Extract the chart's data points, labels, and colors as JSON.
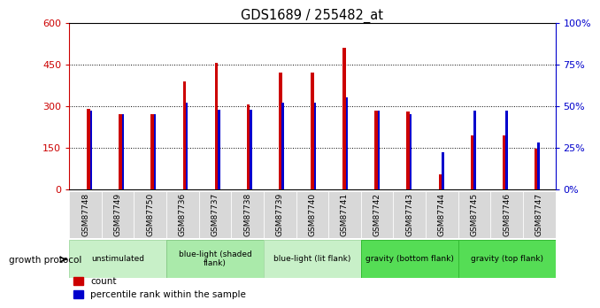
{
  "title": "GDS1689 / 255482_at",
  "samples": [
    "GSM87748",
    "GSM87749",
    "GSM87750",
    "GSM87736",
    "GSM87737",
    "GSM87738",
    "GSM87739",
    "GSM87740",
    "GSM87741",
    "GSM87742",
    "GSM87743",
    "GSM87744",
    "GSM87745",
    "GSM87746",
    "GSM87747"
  ],
  "count_values": [
    290,
    270,
    270,
    390,
    455,
    305,
    420,
    420,
    510,
    285,
    280,
    55,
    195,
    195,
    145
  ],
  "percentile_values": [
    47,
    45,
    45,
    52,
    48,
    48,
    52,
    52,
    55,
    47,
    45,
    22,
    47,
    47,
    28
  ],
  "groups": [
    {
      "label": "unstimulated",
      "n": 3,
      "color": "#c8f0c8",
      "border": "#aaddaa"
    },
    {
      "label": "blue-light (shaded\nflank)",
      "n": 3,
      "color": "#aaeaaa",
      "border": "#88cc88"
    },
    {
      "label": "blue-light (lit flank)",
      "n": 3,
      "color": "#c8f0c8",
      "border": "#aaddaa"
    },
    {
      "label": "gravity (bottom flank)",
      "n": 3,
      "color": "#55dd55",
      "border": "#33bb33"
    },
    {
      "label": "gravity (top flank)",
      "n": 3,
      "color": "#55dd55",
      "border": "#33bb33"
    }
  ],
  "ylim_left": [
    0,
    600
  ],
  "ylim_right": [
    0,
    100
  ],
  "yticks_left": [
    0,
    150,
    300,
    450,
    600
  ],
  "yticks_right": [
    0,
    25,
    50,
    75,
    100
  ],
  "ytick_labels_left": [
    "0",
    "150",
    "300",
    "450",
    "600"
  ],
  "ytick_labels_right": [
    "0%",
    "25%",
    "50%",
    "75%",
    "100%"
  ],
  "bar_color_count": "#cc0000",
  "bar_color_percentile": "#0000cc",
  "growth_protocol_label": "growth protocol",
  "legend_count_label": "count",
  "legend_percentile_label": "percentile rank within the sample"
}
